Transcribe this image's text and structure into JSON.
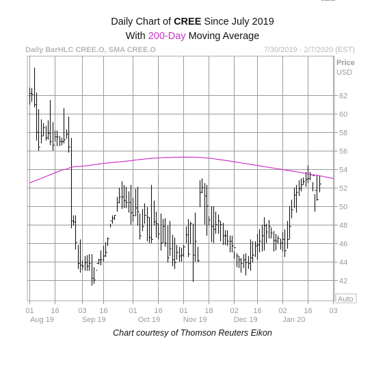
{
  "header": {
    "title_prefix": "Daily Chart of ",
    "title_ticker": "CREE",
    "title_suffix": " Since July 2019",
    "subtitle_prefix": "With ",
    "subtitle_highlight": "200-Day",
    "subtitle_suffix": " Moving Average",
    "chart_id": "Daily BarHLC CREE.O, SMA CREE.O",
    "date_range": "7/30/2019 - 2/7/2020 (EST)"
  },
  "credit": "Chart courtesy of Thomson Reuters Eikon",
  "colors": {
    "bars": "#111111",
    "sma": "#cc33cc",
    "grid": "#9a9a9a",
    "labels": "#9a9a9a"
  },
  "chart_data": {
    "type": "bar",
    "bar_style": "HLC",
    "ylabel_top": "Price",
    "ylabel_unit": "USD",
    "auto_label": "Auto",
    "ylim": [
      40.5,
      65.5
    ],
    "yticks": [
      42,
      44,
      46,
      48,
      50,
      52,
      54,
      56,
      58,
      60,
      62
    ],
    "xday_labels": [
      "01",
      "16",
      "03",
      "16",
      "01",
      "16",
      "01",
      "18",
      "02",
      "16",
      "02",
      "16",
      "03"
    ],
    "xday_index": [
      0,
      11,
      23,
      32,
      45,
      56,
      67,
      78,
      89,
      99,
      110,
      121,
      132
    ],
    "month_labels": [
      "Aug 19",
      "Sep 19",
      "Oct 19",
      "Nov 19",
      "Dec 19",
      "Jan 20"
    ],
    "month_index": [
      5.5,
      28,
      52,
      72,
      94,
      115
    ],
    "grid": true,
    "n_days": 133,
    "high": [
      62.8,
      62.8,
      65.0,
      62.3,
      60.5,
      59.4,
      59.0,
      58.7,
      59.3,
      61.5,
      59.1,
      58.2,
      58.2,
      57.6,
      57.4,
      60.6,
      58.3,
      59.7,
      57.4,
      49.0,
      49.0,
      45.8,
      46.4,
      44.1,
      44.6,
      44.7,
      44.8,
      44.8,
      43.4,
      43.1,
      44.3,
      45.2,
      45.7,
      46.1,
      46.6,
      48.1,
      49.0,
      49.0,
      51.0,
      52.0,
      52.7,
      52.3,
      52.1,
      51.6,
      52.3,
      50.9,
      51.9,
      52.1,
      49.2,
      49.7,
      50.3,
      49.9,
      48.8,
      52.3,
      50.6,
      49.4,
      48.1,
      49.2,
      48.6,
      48.7,
      47.9,
      48.4,
      46.9,
      46.6,
      45.8,
      45.6,
      45.5,
      45.8,
      47.8,
      48.6,
      48.3,
      48.1,
      49.3,
      45.6,
      52.8,
      53.0,
      52.5,
      52.3,
      48.9,
      50.0,
      50.0,
      49.4,
      49.1,
      48.4,
      48.2,
      47.4,
      47.4,
      46.8,
      46.8,
      45.1,
      44.9,
      44.6,
      44.4,
      44.8,
      44.9,
      44.6,
      46.4,
      46.2,
      46.2,
      47.0,
      47.5,
      48.0,
      48.8,
      48.1,
      48.5,
      47.7,
      47.3,
      47.0,
      46.8,
      46.5,
      47.2,
      47.5,
      48.4,
      50.0,
      50.7,
      52.0,
      52.3,
      52.8,
      53.0,
      53.1,
      53.7,
      54.4,
      53.7,
      52.6,
      51.3,
      53.3,
      53.3
    ],
    "low": [
      61.0,
      61.3,
      60.7,
      57.1,
      56.0,
      56.8,
      57.6,
      57.1,
      57.2,
      56.6,
      56.0,
      57.0,
      56.5,
      56.5,
      56.6,
      56.8,
      57.3,
      55.8,
      47.6,
      47.9,
      45.3,
      43.2,
      42.8,
      43.1,
      43.0,
      43.0,
      43.0,
      41.4,
      41.6,
      43.0,
      43.7,
      43.6,
      44.0,
      44.5,
      45.7,
      47.7,
      48.1,
      48.5,
      49.4,
      50.3,
      49.7,
      49.8,
      49.8,
      49.3,
      48.0,
      48.3,
      48.9,
      47.9,
      46.4,
      47.3,
      48.1,
      46.2,
      46.0,
      46.0,
      47.9,
      46.6,
      46.4,
      45.2,
      46.0,
      45.6,
      43.9,
      44.6,
      43.5,
      43.2,
      44.2,
      44.0,
      44.0,
      44.5,
      46.0,
      44.5,
      45.9,
      41.8,
      44.0,
      43.9,
      49.9,
      51.4,
      48.0,
      46.8,
      47.9,
      46.1,
      46.0,
      47.0,
      47.0,
      46.2,
      45.8,
      45.8,
      45.7,
      45.0,
      45.0,
      44.3,
      43.4,
      43.3,
      42.8,
      43.3,
      42.5,
      43.2,
      43.0,
      43.9,
      44.5,
      44.2,
      45.0,
      45.1,
      45.2,
      46.0,
      46.5,
      46.5,
      45.1,
      45.2,
      45.9,
      45.3,
      45.1,
      44.5,
      45.4,
      46.4,
      48.7,
      49.8,
      49.3,
      51.1,
      51.6,
      52.3,
      52.1,
      52.5,
      52.8,
      51.6,
      49.4,
      50.6,
      51.5
    ],
    "close": [
      62.2,
      62.1,
      61.0,
      58.0,
      56.4,
      57.6,
      58.5,
      57.4,
      57.9,
      57.0,
      56.6,
      57.5,
      57.5,
      57.0,
      57.0,
      57.2,
      57.8,
      56.4,
      48.4,
      48.3,
      46.1,
      43.8,
      43.6,
      43.5,
      43.9,
      43.5,
      43.8,
      42.2,
      42.0,
      43.8,
      44.2,
      44.2,
      44.6,
      45.0,
      46.5,
      48.4,
      48.7,
      49.0,
      50.4,
      51.0,
      51.0,
      50.6,
      50.4,
      50.4,
      49.3,
      49.0,
      49.8,
      49.4,
      46.8,
      47.8,
      49.0,
      48.8,
      46.6,
      46.4,
      48.3,
      48.1,
      47.0,
      46.0,
      47.8,
      46.0,
      44.4,
      45.4,
      44.2,
      43.9,
      45.0,
      44.6,
      44.7,
      45.6,
      46.9,
      44.8,
      48.1,
      44.7,
      46.2,
      44.1,
      51.5,
      52.0,
      51.1,
      50.0,
      48.5,
      47.8,
      47.5,
      48.0,
      48.4,
      48.0,
      46.8,
      46.8,
      46.2,
      46.2,
      45.7,
      45.5,
      44.6,
      44.2,
      43.8,
      44.2,
      43.9,
      43.8,
      44.4,
      44.7,
      45.7,
      45.8,
      46.2,
      46.8,
      47.9,
      47.2,
      47.8,
      47.1,
      46.3,
      46.2,
      46.5,
      46.0,
      46.4,
      45.2,
      46.4,
      47.8,
      49.6,
      51.2,
      51.5,
      51.9,
      52.3,
      52.7,
      52.9,
      53.0,
      53.4,
      53.3,
      51.7,
      50.7,
      52.4
    ],
    "sma200": [
      52.5,
      52.6,
      52.7,
      52.8,
      52.9,
      53.0,
      53.1,
      53.2,
      53.3,
      53.4,
      53.5,
      53.6,
      53.7,
      53.8,
      53.9,
      53.95,
      54.0,
      54.1,
      54.2,
      54.25,
      54.3,
      54.3,
      54.32,
      54.35,
      54.36,
      54.38,
      54.4,
      54.45,
      54.5,
      54.52,
      54.55,
      54.6,
      54.62,
      54.65,
      54.68,
      54.7,
      54.72,
      54.75,
      54.78,
      54.8,
      54.82,
      54.85,
      54.88,
      54.9,
      54.92,
      54.95,
      55.0,
      55.02,
      55.05,
      55.08,
      55.1,
      55.13,
      55.15,
      55.18,
      55.2,
      55.2,
      55.22,
      55.24,
      55.25,
      55.26,
      55.27,
      55.28,
      55.29,
      55.3,
      55.3,
      55.3,
      55.31,
      55.31,
      55.31,
      55.31,
      55.3,
      55.3,
      55.3,
      55.29,
      55.28,
      55.26,
      55.24,
      55.22,
      55.2,
      55.17,
      55.14,
      55.1,
      55.07,
      55.03,
      55.0,
      54.96,
      54.93,
      54.89,
      54.85,
      54.81,
      54.77,
      54.73,
      54.69,
      54.65,
      54.61,
      54.57,
      54.53,
      54.49,
      54.45,
      54.41,
      54.37,
      54.33,
      54.29,
      54.25,
      54.21,
      54.17,
      54.13,
      54.09,
      54.05,
      54.01,
      53.97,
      53.93,
      53.89,
      53.85,
      53.81,
      53.77,
      53.73,
      53.69,
      53.65,
      53.6,
      53.55,
      53.5,
      53.46,
      53.42,
      53.38,
      53.34,
      53.3,
      53.25,
      53.2,
      53.15,
      53.1,
      53.05,
      53.0
    ]
  }
}
